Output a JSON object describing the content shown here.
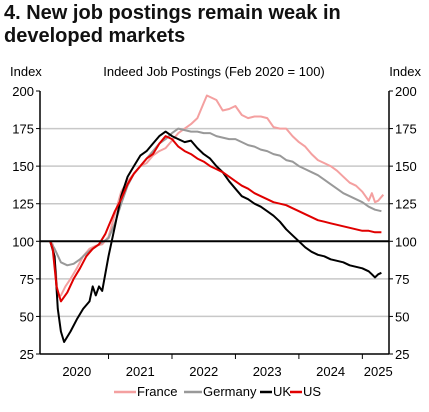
{
  "title": {
    "line1": "4. New job postings remain weak in",
    "line2": "developed markets"
  },
  "chart_data": {
    "type": "line",
    "subtitle": "Indeed Job Postings (Feb 2020 = 100)",
    "ylabel_left": "Index",
    "ylabel_right": "Index",
    "ylim": [
      25,
      200
    ],
    "yticks": [
      25,
      50,
      75,
      100,
      125,
      150,
      175,
      200
    ],
    "xlim": [
      2019.92,
      2025.42
    ],
    "xtick_labels": [
      "2020",
      "2021",
      "2022",
      "2023",
      "2024",
      "2025"
    ],
    "xtick_positions": [
      2020.5,
      2021.5,
      2022.5,
      2023.5,
      2024.5,
      2025.25
    ],
    "year_boundaries": [
      2021,
      2022,
      2023,
      2024,
      2025
    ],
    "reference_line": 100,
    "grid": true,
    "legend_position": "bottom",
    "series": [
      {
        "name": "France",
        "color": "#f4a0a0",
        "x": [
          2020.08,
          2020.12,
          2020.17,
          2020.2,
          2020.25,
          2020.32,
          2020.4,
          2020.5,
          2020.6,
          2020.7,
          2020.8,
          2020.9,
          2021.0,
          2021.1,
          2021.2,
          2021.3,
          2021.4,
          2021.5,
          2021.6,
          2021.7,
          2021.8,
          2021.9,
          2022.0,
          2022.1,
          2022.2,
          2022.3,
          2022.4,
          2022.5,
          2022.55,
          2022.6,
          2022.7,
          2022.8,
          2022.9,
          2023.0,
          2023.1,
          2023.2,
          2023.3,
          2023.4,
          2023.5,
          2023.6,
          2023.7,
          2023.8,
          2023.9,
          2024.0,
          2024.1,
          2024.2,
          2024.3,
          2024.4,
          2024.5,
          2024.6,
          2024.7,
          2024.8,
          2024.9,
          2025.0,
          2025.05,
          2025.1,
          2025.15,
          2025.2,
          2025.25,
          2025.33
        ],
        "values": [
          100,
          98,
          80,
          63,
          64,
          70,
          75,
          82,
          90,
          95,
          97,
          98,
          103,
          118,
          133,
          140,
          145,
          150,
          152,
          157,
          160,
          162,
          167,
          172,
          175,
          178,
          182,
          192,
          197,
          196,
          194,
          187,
          188,
          190,
          184,
          182,
          183,
          183,
          182,
          176,
          175,
          175,
          170,
          166,
          163,
          158,
          154,
          152,
          150,
          147,
          143,
          139,
          137,
          133,
          130,
          127,
          132,
          126,
          127,
          131
        ]
      },
      {
        "name": "Germany",
        "color": "#999999",
        "x": [
          2020.08,
          2020.15,
          2020.25,
          2020.35,
          2020.45,
          2020.55,
          2020.65,
          2020.75,
          2020.85,
          2021.0,
          2021.1,
          2021.2,
          2021.3,
          2021.4,
          2021.5,
          2021.6,
          2021.7,
          2021.8,
          2021.9,
          2022.0,
          2022.1,
          2022.2,
          2022.3,
          2022.4,
          2022.5,
          2022.6,
          2022.7,
          2022.8,
          2022.9,
          2023.0,
          2023.1,
          2023.2,
          2023.3,
          2023.4,
          2023.5,
          2023.6,
          2023.7,
          2023.8,
          2023.9,
          2024.0,
          2024.1,
          2024.2,
          2024.3,
          2024.4,
          2024.5,
          2024.6,
          2024.7,
          2024.8,
          2024.9,
          2025.0,
          2025.1,
          2025.2,
          2025.3
        ],
        "values": [
          100,
          95,
          86,
          84,
          85,
          88,
          92,
          95,
          98,
          102,
          112,
          125,
          137,
          145,
          150,
          155,
          160,
          165,
          168,
          172,
          175,
          174,
          173,
          173,
          172,
          172,
          170,
          169,
          168,
          168,
          166,
          164,
          163,
          161,
          160,
          158,
          157,
          154,
          153,
          150,
          148,
          146,
          144,
          141,
          138,
          135,
          132,
          130,
          128,
          126,
          123,
          121,
          120
        ]
      },
      {
        "name": "UK",
        "color": "#000000",
        "x": [
          2020.08,
          2020.15,
          2020.2,
          2020.25,
          2020.3,
          2020.4,
          2020.5,
          2020.6,
          2020.7,
          2020.75,
          2020.8,
          2020.85,
          2020.9,
          2021.0,
          2021.1,
          2021.2,
          2021.3,
          2021.4,
          2021.5,
          2021.6,
          2021.7,
          2021.8,
          2021.9,
          2022.0,
          2022.1,
          2022.2,
          2022.3,
          2022.4,
          2022.5,
          2022.6,
          2022.7,
          2022.8,
          2022.9,
          2023.0,
          2023.1,
          2023.2,
          2023.3,
          2023.4,
          2023.5,
          2023.6,
          2023.7,
          2023.8,
          2023.9,
          2024.0,
          2024.1,
          2024.2,
          2024.3,
          2024.4,
          2024.5,
          2024.6,
          2024.7,
          2024.8,
          2024.9,
          2025.0,
          2025.1,
          2025.15,
          2025.2,
          2025.25,
          2025.3
        ],
        "values": [
          100,
          90,
          55,
          40,
          33,
          40,
          48,
          55,
          60,
          70,
          64,
          70,
          67,
          90,
          110,
          130,
          143,
          150,
          157,
          160,
          165,
          170,
          173,
          170,
          168,
          166,
          167,
          162,
          158,
          155,
          150,
          146,
          140,
          135,
          130,
          128,
          125,
          123,
          120,
          117,
          113,
          108,
          104,
          100,
          96,
          93,
          91,
          90,
          88,
          87,
          86,
          84,
          83,
          82,
          80,
          78,
          76,
          78,
          79
        ]
      },
      {
        "name": "US",
        "color": "#e00000",
        "x": [
          2020.08,
          2020.12,
          2020.18,
          2020.25,
          2020.35,
          2020.45,
          2020.55,
          2020.65,
          2020.75,
          2020.85,
          2020.95,
          2021.0,
          2021.1,
          2021.2,
          2021.3,
          2021.4,
          2021.5,
          2021.6,
          2021.7,
          2021.8,
          2021.9,
          2022.0,
          2022.1,
          2022.2,
          2022.3,
          2022.4,
          2022.5,
          2022.6,
          2022.7,
          2022.8,
          2022.9,
          2023.0,
          2023.1,
          2023.2,
          2023.3,
          2023.4,
          2023.5,
          2023.6,
          2023.7,
          2023.8,
          2023.9,
          2024.0,
          2024.1,
          2024.2,
          2024.3,
          2024.4,
          2024.5,
          2024.6,
          2024.7,
          2024.8,
          2024.9,
          2025.0,
          2025.1,
          2025.2,
          2025.3
        ],
        "values": [
          100,
          95,
          70,
          60,
          66,
          75,
          82,
          90,
          95,
          98,
          105,
          110,
          120,
          128,
          138,
          145,
          150,
          155,
          158,
          165,
          170,
          168,
          163,
          160,
          158,
          155,
          153,
          150,
          148,
          146,
          143,
          140,
          137,
          135,
          132,
          130,
          128,
          126,
          125,
          124,
          122,
          120,
          118,
          116,
          114,
          113,
          112,
          111,
          110,
          109,
          108,
          107,
          107,
          106,
          106
        ]
      }
    ]
  }
}
